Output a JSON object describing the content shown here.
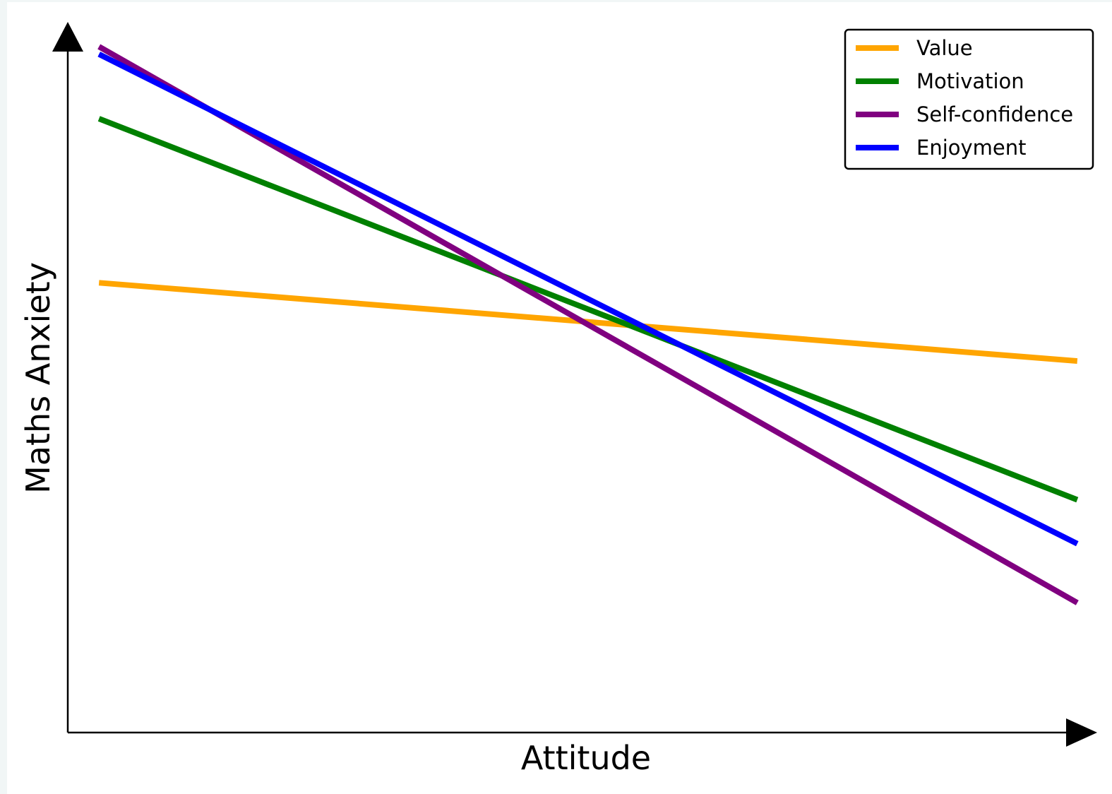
{
  "chart_data": {
    "type": "line",
    "title": "",
    "xlabel": "Attitude",
    "ylabel": "Maths Anxiety",
    "xlim": [
      0,
      1
    ],
    "ylim": [
      0,
      1
    ],
    "grid": false,
    "legend_position": "top-right",
    "x": [
      0.03,
      0.97
    ],
    "series": [
      {
        "name": "Value",
        "color": "#ffa500",
        "values": [
          0.655,
          0.541
        ]
      },
      {
        "name": "Motivation",
        "color": "#008000",
        "values": [
          0.894,
          0.339
        ]
      },
      {
        "name": "Self-confidence",
        "color": "#800080",
        "values": [
          0.999,
          0.189
        ]
      },
      {
        "name": "Enjoyment",
        "color": "#0000ff",
        "values": [
          0.988,
          0.275
        ]
      }
    ]
  }
}
